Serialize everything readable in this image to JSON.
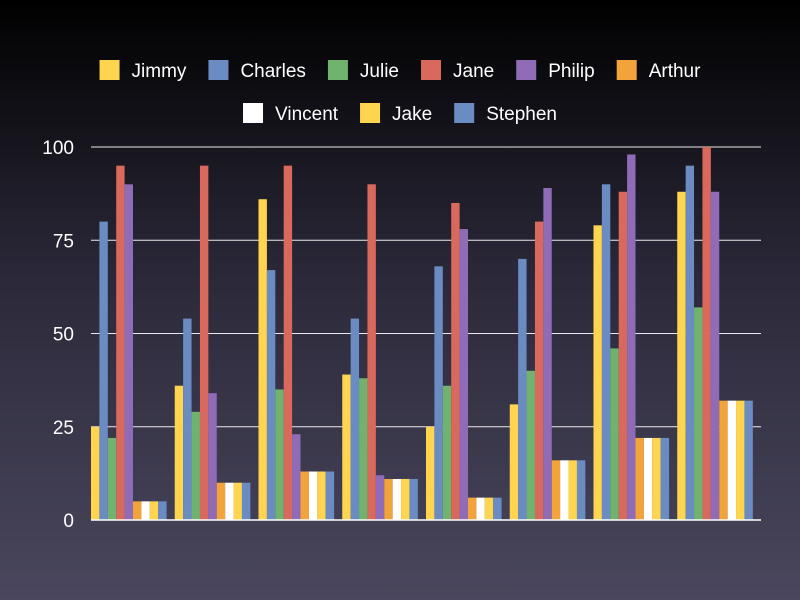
{
  "chart_data": {
    "type": "bar",
    "title": "",
    "xlabel": "",
    "ylabel": "",
    "ylim": [
      0,
      100
    ],
    "yticks": [
      0,
      25,
      50,
      75,
      100
    ],
    "grid": true,
    "legend_position": "top",
    "categories": [
      "",
      "",
      "",
      "",
      "",
      "",
      "",
      ""
    ],
    "series": [
      {
        "name": "Jimmy",
        "color": "#ffd54f",
        "values": [
          25,
          36,
          86,
          39,
          25,
          31,
          79,
          88
        ]
      },
      {
        "name": "Charles",
        "color": "#6b8cc2",
        "values": [
          80,
          54,
          67,
          54,
          68,
          70,
          90,
          95
        ]
      },
      {
        "name": "Julie",
        "color": "#6fb36f",
        "values": [
          22,
          29,
          35,
          38,
          36,
          40,
          46,
          57
        ]
      },
      {
        "name": "Jane",
        "color": "#d9695c",
        "values": [
          95,
          95,
          95,
          90,
          85,
          80,
          88,
          100
        ]
      },
      {
        "name": "Philip",
        "color": "#8f6bb8",
        "values": [
          90,
          34,
          23,
          12,
          78,
          89,
          98,
          88
        ]
      },
      {
        "name": "Arthur",
        "color": "#f2a33a",
        "values": [
          5,
          10,
          13,
          11,
          6,
          16,
          22,
          32
        ]
      },
      {
        "name": "Vincent",
        "color": "#ffffff",
        "values": [
          5,
          10,
          13,
          11,
          6,
          16,
          22,
          32
        ]
      },
      {
        "name": "Jake",
        "color": "#ffd54f",
        "values": [
          5,
          10,
          13,
          11,
          6,
          16,
          22,
          32
        ]
      },
      {
        "name": "Stephen",
        "color": "#6b8cc2",
        "values": [
          5,
          10,
          13,
          11,
          6,
          16,
          22,
          32
        ]
      }
    ]
  }
}
